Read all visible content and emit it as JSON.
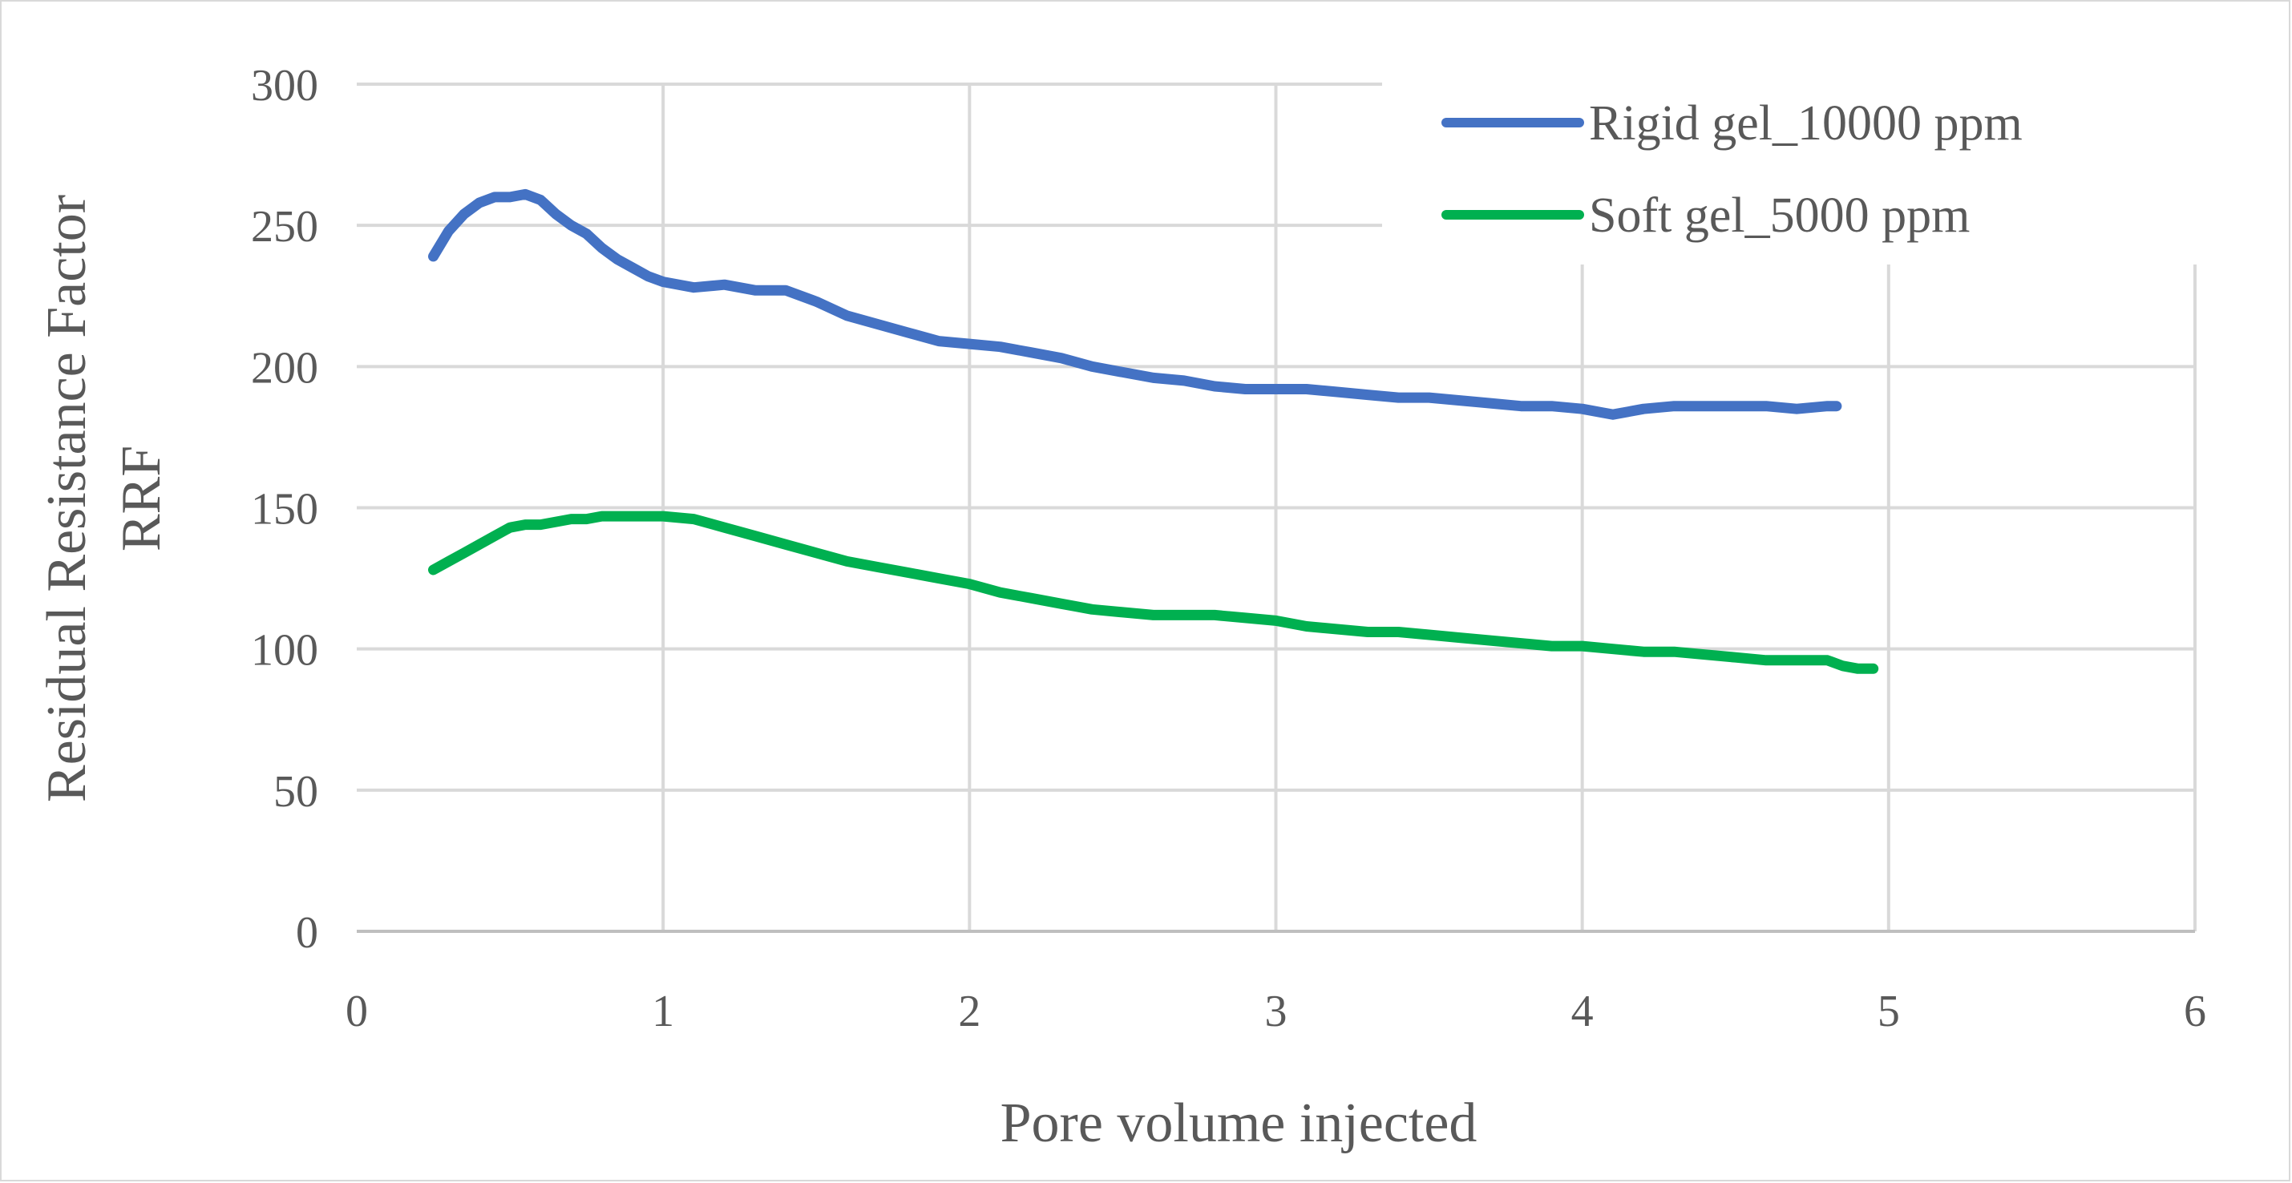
{
  "chart_data": {
    "type": "line",
    "title": "",
    "xlabel": "Pore volume injected",
    "ylabel_line1": "Residual Resistance Factor",
    "ylabel_line2": "RRF",
    "xlim": [
      0,
      6
    ],
    "ylim": [
      0,
      300
    ],
    "x_ticks": [
      "0",
      "1",
      "2",
      "3",
      "4",
      "5",
      "6"
    ],
    "y_ticks": [
      "0",
      "50",
      "100",
      "150",
      "200",
      "250",
      "300"
    ],
    "grid": true,
    "legend_position": "top-right",
    "series": [
      {
        "name": "Rigid gel_10000 ppm",
        "color": "#4472C4",
        "x": [
          0.25,
          0.3,
          0.35,
          0.4,
          0.45,
          0.5,
          0.55,
          0.6,
          0.65,
          0.7,
          0.75,
          0.8,
          0.85,
          0.9,
          0.95,
          1.0,
          1.1,
          1.2,
          1.3,
          1.4,
          1.5,
          1.6,
          1.7,
          1.8,
          1.9,
          2.0,
          2.1,
          2.2,
          2.3,
          2.4,
          2.5,
          2.6,
          2.7,
          2.8,
          2.9,
          3.0,
          3.1,
          3.2,
          3.3,
          3.4,
          3.5,
          3.6,
          3.7,
          3.8,
          3.9,
          4.0,
          4.1,
          4.2,
          4.3,
          4.4,
          4.5,
          4.6,
          4.7,
          4.8,
          4.83
        ],
        "values": [
          239,
          248,
          254,
          258,
          260,
          260,
          261,
          259,
          254,
          250,
          247,
          242,
          238,
          235,
          232,
          230,
          228,
          229,
          227,
          227,
          223,
          218,
          215,
          212,
          209,
          208,
          207,
          205,
          203,
          200,
          198,
          196,
          195,
          193,
          192,
          192,
          192,
          191,
          190,
          189,
          189,
          188,
          187,
          186,
          186,
          185,
          183,
          185,
          186,
          186,
          186,
          186,
          185,
          186,
          186
        ]
      },
      {
        "name": "Soft gel_5000 ppm",
        "color": "#00B050",
        "x": [
          0.25,
          0.3,
          0.35,
          0.4,
          0.45,
          0.5,
          0.55,
          0.6,
          0.65,
          0.7,
          0.75,
          0.8,
          0.85,
          0.9,
          0.95,
          1.0,
          1.1,
          1.2,
          1.3,
          1.4,
          1.5,
          1.6,
          1.7,
          1.8,
          1.9,
          2.0,
          2.1,
          2.2,
          2.3,
          2.4,
          2.5,
          2.6,
          2.7,
          2.8,
          2.9,
          3.0,
          3.1,
          3.2,
          3.3,
          3.4,
          3.5,
          3.6,
          3.7,
          3.8,
          3.9,
          4.0,
          4.1,
          4.2,
          4.3,
          4.4,
          4.5,
          4.6,
          4.7,
          4.8,
          4.85,
          4.9,
          4.95
        ],
        "values": [
          128,
          131,
          134,
          137,
          140,
          143,
          144,
          144,
          145,
          146,
          146,
          147,
          147,
          147,
          147,
          147,
          146,
          143,
          140,
          137,
          134,
          131,
          129,
          127,
          125,
          123,
          120,
          118,
          116,
          114,
          113,
          112,
          112,
          112,
          111,
          110,
          108,
          107,
          106,
          106,
          105,
          104,
          103,
          102,
          101,
          101,
          100,
          99,
          99,
          98,
          97,
          96,
          96,
          96,
          94,
          93,
          93
        ]
      }
    ]
  }
}
